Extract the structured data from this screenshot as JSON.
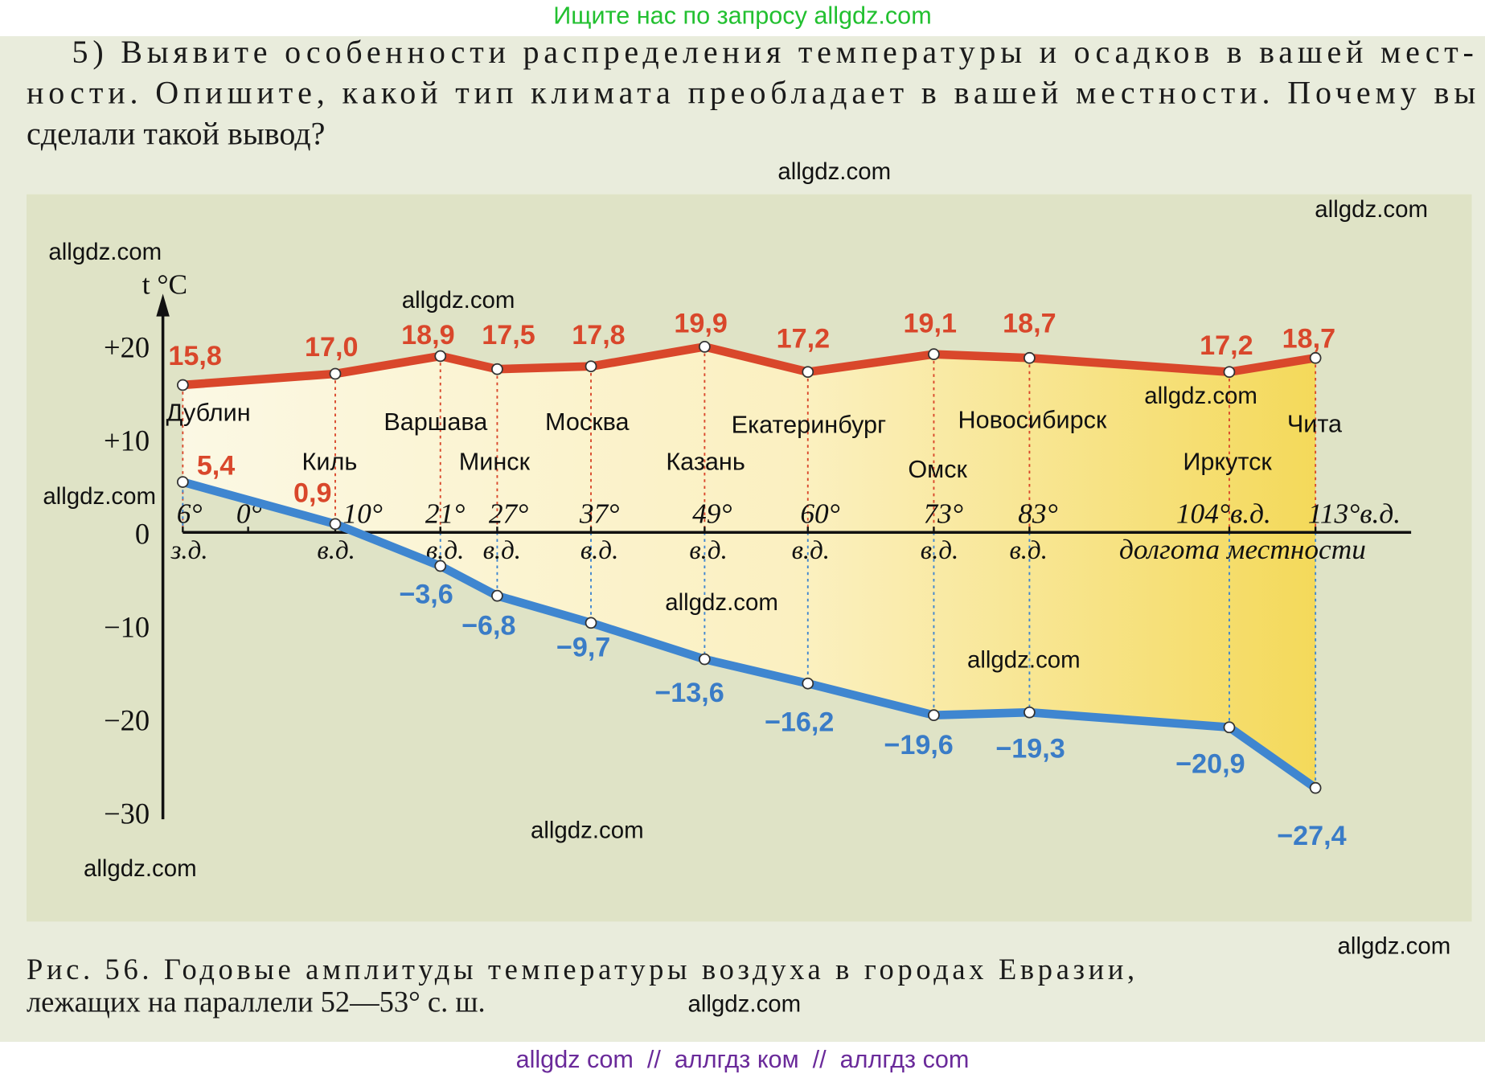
{
  "top_banner": "Ищите нас по запросу allgdz.com",
  "question": {
    "lines": [
      "5) Выявите особенности распределения температуры и осадков в вашей мест-",
      "ности. Опишите, какой тип климата преобладает в вашей местности. Почему вы",
      "сделали такой вывод?"
    ]
  },
  "caption": {
    "lines": [
      "Рис. 56. Годовые амплитуды температуры воздуха в городах Евразии,",
      "лежащих на параллели 52—53° с. ш."
    ]
  },
  "bottom_banner": "allgdz com  //  аллгдз ком  //  аллгдз com",
  "watermark": "allgdz.com",
  "colors": {
    "summer_line": "#d9472b",
    "winter_line": "#3f86d0",
    "summer_label": "#d9472b",
    "winter_label": "#3a7cc7",
    "chart_bg": "#dfe3c6",
    "fill_light": "#fbf6dc",
    "fill_dark": "#f5df6a",
    "banner_green": "#22c030",
    "banner_purple": "#6a2a9a"
  },
  "chart_data": {
    "type": "line",
    "ylabel": "t °C",
    "xlabel": "долгота местности",
    "ylim": [
      -30,
      20
    ],
    "y_ticks": [
      "+20",
      "+10",
      "0",
      "−10",
      "−20",
      "−30"
    ],
    "y_tick_values": [
      20,
      10,
      0,
      -10,
      -20,
      -30
    ],
    "x_ticks": [
      {
        "deg": "6°",
        "dir": "з.д."
      },
      {
        "deg": "0°",
        "dir": ""
      },
      {
        "deg": "10°",
        "dir": "в.д."
      },
      {
        "deg": "21°",
        "dir": "в.д."
      },
      {
        "deg": "27°",
        "dir": "в.д."
      },
      {
        "deg": "37°",
        "dir": "в.д."
      },
      {
        "deg": "49°",
        "dir": "в.д."
      },
      {
        "deg": "60°",
        "dir": "в.д."
      },
      {
        "deg": "73°",
        "dir": "в.д."
      },
      {
        "deg": "83°",
        "dir": "в.д."
      },
      {
        "deg": "104°в.д.",
        "dir": ""
      },
      {
        "deg": "113°в.д.",
        "dir": ""
      }
    ],
    "cities": [
      "Дублин",
      "Киль",
      "Варшава",
      "Минск",
      "Москва",
      "Казань",
      "Екатеринбург",
      "Омск",
      "Новосибирск",
      "Иркутск",
      "Чита"
    ],
    "longitudes": [
      "6° з.д.",
      "10° в.д.",
      "21° в.д.",
      "27° в.д.",
      "37° в.д.",
      "49° в.д.",
      "60° в.д.",
      "73° в.д.",
      "83° в.д.",
      "104° в.д.",
      "113° в.д."
    ],
    "series": [
      {
        "key": "summer",
        "values": [
          15.8,
          17.0,
          18.9,
          17.5,
          17.8,
          19.9,
          17.2,
          19.1,
          18.7,
          17.2,
          18.7
        ],
        "labels": [
          "15,8",
          "17,0",
          "18,9",
          "17,5",
          "17,8",
          "19,9",
          "17,2",
          "19,1",
          "18,7",
          "17,2",
          "18,7"
        ]
      },
      {
        "key": "winter",
        "values": [
          5.4,
          0.9,
          -3.6,
          -6.8,
          -9.7,
          -13.6,
          -16.2,
          -19.6,
          -19.3,
          -20.9,
          -27.4
        ],
        "labels": [
          "5,4",
          "0,9",
          "−3,6",
          "−6,8",
          "−9,7",
          "−13,6",
          "−16,2",
          "−19,6",
          "−19,3",
          "−20,9",
          "−27,4"
        ]
      }
    ],
    "grid": false,
    "legend": "none"
  }
}
